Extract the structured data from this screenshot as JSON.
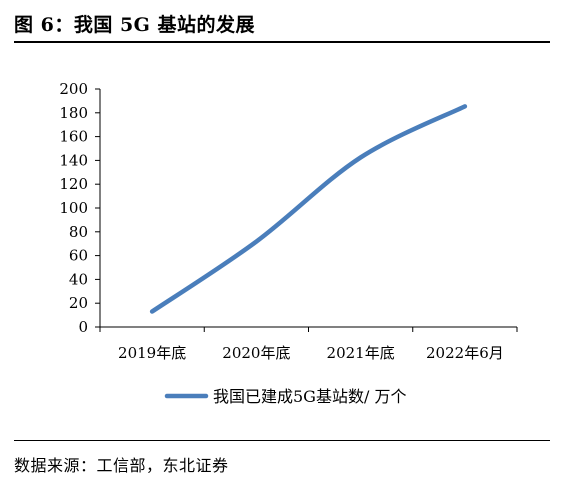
{
  "figure": {
    "title": "图 6：我国 5G 基站的发展",
    "source": "数据来源：工信部，东北证券"
  },
  "chart_data": {
    "type": "line",
    "categories": [
      "2019年底",
      "2020年底",
      "2021年底",
      "2022年6月"
    ],
    "series": [
      {
        "name": "我国已建成5G基站数/ 万个",
        "values": [
          13,
          71.8,
          142.5,
          185.4
        ],
        "color": "#4a7ebb"
      }
    ],
    "yticks": [
      0,
      20,
      40,
      60,
      80,
      100,
      120,
      140,
      160,
      180,
      200
    ],
    "ylim": [
      0,
      200
    ],
    "grid": false,
    "legend": "bottom"
  }
}
